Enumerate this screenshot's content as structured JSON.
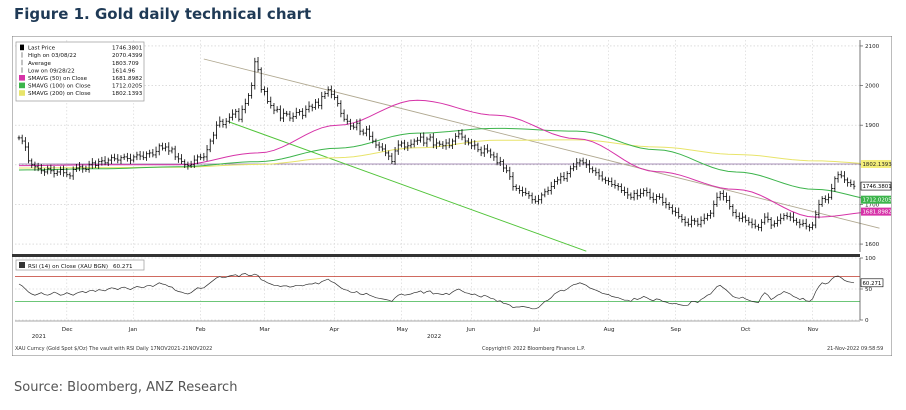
{
  "figure_title": "Figure 1. Gold daily technical chart",
  "source": "Source: Bloomberg, ANZ Research",
  "footer": {
    "left": "XAU Curncy (Gold Spot $/Oz) The vault with RSI Daily 17NOV2021-21NOV2022",
    "center": "Copyright© 2022 Bloomberg Finance L.P.",
    "right": "21-Nov-2022 09:58:59"
  },
  "colors": {
    "price": "#000000",
    "smavg50": "#d633a8",
    "smavg100": "#3cb44b",
    "smavg200": "#e8e46a",
    "trend_channel": "#52c43a",
    "trend_upper": "#b0a890",
    "horizontal_line": "#a890b8",
    "rsi_line": "#333333",
    "rsi_upper": "#c0392b",
    "rsi_lower": "#3cb44b"
  },
  "chart_data": [
    {
      "type": "line",
      "panel": "price",
      "title": "",
      "legend_position": "top-left",
      "legend": [
        {
          "label": "Last Price",
          "value": "1746.3801",
          "marker": "bar"
        },
        {
          "label": "High on 03/08/22",
          "value": "2070.4399",
          "marker": "high"
        },
        {
          "label": "Average",
          "value": "1803.709",
          "marker": "avg"
        },
        {
          "label": "Low on 09/28/22",
          "value": "1614.96",
          "marker": "low"
        },
        {
          "label": "SMAVG (50) on Close",
          "value": "1681.8982",
          "marker": "magenta"
        },
        {
          "label": "SMAVG (100) on Close",
          "value": "1712.0205",
          "marker": "green"
        },
        {
          "label": "SMAVG (200) on Close",
          "value": "1802.1393",
          "marker": "yellow"
        }
      ],
      "x_ticks": [
        "Dec",
        "Jan",
        "Feb",
        "Mar",
        "Apr",
        "May",
        "Jun",
        "Jul",
        "Aug",
        "Sep",
        "Oct",
        "Nov"
      ],
      "year_labels": [
        "2021",
        "2022"
      ],
      "y_ticks": [
        "1600",
        "1700",
        "1800",
        "1900",
        "2000",
        "2100"
      ],
      "ylim": [
        1580,
        2115
      ],
      "value_tags": [
        {
          "label": "1802.1393",
          "value": 1802.14,
          "kind": "yellow"
        },
        {
          "label": "1746.3801",
          "value": 1746.38,
          "kind": "price"
        },
        {
          "label": "1712.0205",
          "value": 1712.02,
          "kind": "green"
        },
        {
          "label": "1681.8982",
          "value": 1681.9,
          "kind": "magenta"
        }
      ],
      "series": [
        {
          "key": "close",
          "values": [
            1868,
            1860,
            1845,
            1810,
            1800,
            1795,
            1790,
            1785,
            1782,
            1790,
            1785,
            1778,
            1782,
            1788,
            1780,
            1775,
            1772,
            1788,
            1792,
            1795,
            1790,
            1788,
            1800,
            1805,
            1798,
            1808,
            1810,
            1805,
            1812,
            1818,
            1815,
            1812,
            1818,
            1820,
            1816,
            1812,
            1820,
            1825,
            1822,
            1818,
            1828,
            1830,
            1825,
            1834,
            1848,
            1842,
            1845,
            1835,
            1840,
            1820,
            1815,
            1808,
            1800,
            1798,
            1800,
            1812,
            1820,
            1818,
            1820,
            1838,
            1860,
            1875,
            1900,
            1910,
            1902,
            1910,
            1920,
            1928,
            1935,
            1915,
            1940,
            1955,
            1975,
            2000,
            2060,
            2040,
            1990,
            1985,
            1960,
            1950,
            1938,
            1940,
            1918,
            1930,
            1928,
            1918,
            1922,
            1932,
            1935,
            1925,
            1940,
            1948,
            1945,
            1958,
            1950,
            1972,
            1980,
            1990,
            1978,
            1970,
            1955,
            1930,
            1915,
            1910,
            1898,
            1895,
            1905,
            1885,
            1880,
            1890,
            1872,
            1860,
            1850,
            1845,
            1840,
            1830,
            1822,
            1808,
            1835,
            1850,
            1855,
            1845,
            1848,
            1852,
            1860,
            1862,
            1870,
            1855,
            1865,
            1870,
            1850,
            1855,
            1852,
            1848,
            1855,
            1848,
            1860,
            1872,
            1878,
            1870,
            1860,
            1855,
            1848,
            1850,
            1838,
            1830,
            1840,
            1835,
            1825,
            1820,
            1805,
            1808,
            1792,
            1785,
            1770,
            1745,
            1740,
            1735,
            1730,
            1728,
            1722,
            1712,
            1708,
            1712,
            1724,
            1732,
            1735,
            1745,
            1758,
            1762,
            1770,
            1765,
            1778,
            1790,
            1795,
            1805,
            1810,
            1805,
            1800,
            1790,
            1785,
            1780,
            1772,
            1764,
            1760,
            1758,
            1750,
            1748,
            1745,
            1735,
            1730,
            1724,
            1718,
            1728,
            1722,
            1728,
            1735,
            1730,
            1718,
            1712,
            1720,
            1718,
            1705,
            1700,
            1692,
            1683,
            1680,
            1670,
            1662,
            1655,
            1650,
            1660,
            1658,
            1650,
            1660,
            1665,
            1672,
            1678,
            1700,
            1718,
            1728,
            1720,
            1710,
            1695,
            1680,
            1670,
            1665,
            1668,
            1660,
            1655,
            1650,
            1645,
            1642,
            1655,
            1668,
            1662,
            1648,
            1652,
            1660,
            1665,
            1672,
            1670,
            1668,
            1660,
            1655,
            1650,
            1652,
            1645,
            1642,
            1648,
            1675,
            1700,
            1715,
            1712,
            1718,
            1740,
            1765,
            1775,
            1772,
            1762,
            1755,
            1750,
            1746
          ]
        },
        {
          "key": "smavg200",
          "name": "SMAVG (200)",
          "x": [
            0,
            25,
            50,
            75,
            100,
            125,
            150,
            175,
            200,
            225,
            250,
            270
          ],
          "values": [
            1792,
            1793,
            1794,
            1801,
            1818,
            1843,
            1862,
            1863,
            1845,
            1826,
            1810,
            1802
          ]
        },
        {
          "key": "smavg100",
          "name": "SMAVG (100)",
          "x": [
            0,
            25,
            50,
            75,
            100,
            125,
            150,
            175,
            200,
            225,
            250,
            270
          ],
          "values": [
            1787,
            1790,
            1795,
            1808,
            1842,
            1880,
            1892,
            1885,
            1838,
            1782,
            1738,
            1712
          ]
        },
        {
          "key": "smavg50",
          "name": "SMAVG (50)",
          "x": [
            0,
            25,
            50,
            75,
            100,
            125,
            150,
            175,
            200,
            225,
            250,
            270
          ],
          "values": [
            1798,
            1800,
            1800,
            1830,
            1900,
            1963,
            1925,
            1866,
            1783,
            1738,
            1668,
            1682
          ]
        }
      ],
      "trend_lines": [
        {
          "key": "upper",
          "x": [
            58,
            270
          ],
          "values": [
            2067,
            1640
          ]
        },
        {
          "key": "channel",
          "x": [
            66,
            178
          ],
          "values": [
            1908,
            1582
          ]
        },
        {
          "key": "horizontal",
          "x": [
            0,
            270
          ],
          "values": [
            1802,
            1802
          ]
        }
      ]
    },
    {
      "type": "line",
      "panel": "rsi",
      "legend": [
        {
          "label": "RSI (14) on Close (XAU BGN)",
          "value": "60.271"
        }
      ],
      "y_ticks": [
        "0",
        "50",
        "100"
      ],
      "ylim": [
        0,
        100
      ],
      "value_tag": "60.271",
      "thresholds": [
        70,
        30
      ],
      "series": [
        {
          "key": "rsi",
          "values": [
            58,
            55,
            50,
            45,
            42,
            40,
            42,
            44,
            41,
            40,
            42,
            45,
            43,
            40,
            41,
            44,
            42,
            40,
            43,
            45,
            46,
            44,
            47,
            48,
            46,
            49,
            48,
            47,
            50,
            52,
            51,
            49,
            52,
            53,
            51,
            49,
            52,
            54,
            53,
            52,
            55,
            56,
            54,
            57,
            60,
            58,
            57,
            54,
            53,
            48,
            46,
            45,
            43,
            42,
            44,
            48,
            52,
            51,
            52,
            56,
            60,
            64,
            68,
            70,
            68,
            69,
            71,
            72,
            73,
            70,
            74,
            75,
            72,
            72,
            74,
            72,
            65,
            63,
            60,
            58,
            56,
            56,
            54,
            55,
            55,
            53,
            54,
            56,
            56,
            55,
            57,
            58,
            58,
            60,
            58,
            62,
            64,
            66,
            62,
            60,
            56,
            52,
            49,
            48,
            45,
            44,
            46,
            42,
            41,
            43,
            40,
            38,
            36,
            35,
            34,
            33,
            32,
            30,
            36,
            40,
            42,
            40,
            41,
            42,
            44,
            45,
            47,
            43,
            46,
            47,
            42,
            43,
            42,
            41,
            43,
            41,
            45,
            48,
            50,
            47,
            44,
            43,
            41,
            42,
            39,
            37,
            40,
            38,
            35,
            34,
            30,
            31,
            27,
            26,
            24,
            20,
            21,
            21,
            22,
            21,
            20,
            18,
            18,
            20,
            25,
            30,
            32,
            36,
            42,
            45,
            48,
            47,
            50,
            54,
            57,
            58,
            60,
            58,
            56,
            52,
            50,
            48,
            46,
            43,
            42,
            41,
            38,
            37,
            36,
            34,
            32,
            32,
            30,
            35,
            33,
            35,
            38,
            36,
            33,
            31,
            34,
            33,
            30,
            29,
            27,
            26,
            27,
            25,
            24,
            23,
            24,
            30,
            30,
            28,
            33,
            36,
            40,
            42,
            48,
            54,
            56,
            52,
            48,
            43,
            38,
            36,
            35,
            37,
            34,
            32,
            30,
            29,
            28,
            38,
            44,
            40,
            33,
            36,
            40,
            42,
            46,
            44,
            42,
            38,
            36,
            33,
            35,
            31,
            30,
            34,
            46,
            54,
            60,
            58,
            60,
            66,
            70,
            71,
            68,
            64,
            62,
            61,
            60
          ]
        }
      ]
    }
  ]
}
